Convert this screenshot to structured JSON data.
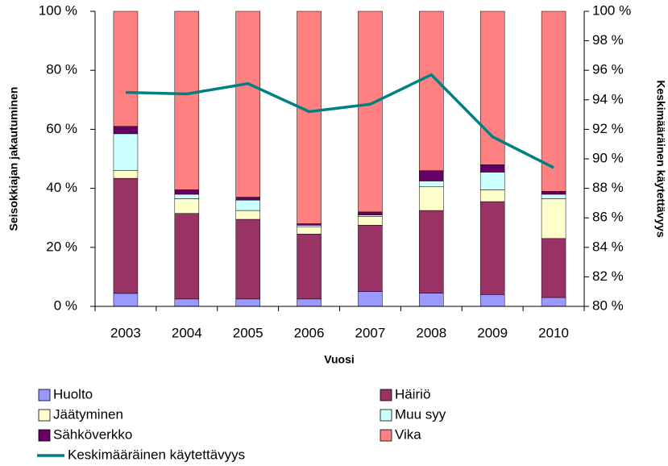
{
  "chart_data": {
    "type": "stacked-bar-line",
    "xlabel": "Vuosi",
    "ylabel": "Seisokkiajan jakautuminen",
    "y2label": "Keskimääräinen käytettävyys",
    "categories": [
      "2003",
      "2004",
      "2005",
      "2006",
      "2007",
      "2008",
      "2009",
      "2010"
    ],
    "ylim": [
      0,
      100
    ],
    "yticks": [
      {
        "value": 0,
        "label": "0 %"
      },
      {
        "value": 20,
        "label": "20 %"
      },
      {
        "value": 40,
        "label": "40 %"
      },
      {
        "value": 60,
        "label": "60 %"
      },
      {
        "value": 80,
        "label": "80 %"
      },
      {
        "value": 100,
        "label": "100 %"
      }
    ],
    "y2lim": [
      80,
      100
    ],
    "y2ticks": [
      {
        "value": 80,
        "label": "80 %"
      },
      {
        "value": 82,
        "label": "82 %"
      },
      {
        "value": 84,
        "label": "84 %"
      },
      {
        "value": 86,
        "label": "86 %"
      },
      {
        "value": 88,
        "label": "88 %"
      },
      {
        "value": 90,
        "label": "90 %"
      },
      {
        "value": 92,
        "label": "92 %"
      },
      {
        "value": 94,
        "label": "94 %"
      },
      {
        "value": 96,
        "label": "96 %"
      },
      {
        "value": 98,
        "label": "98 %"
      },
      {
        "value": 100,
        "label": "100 %"
      }
    ],
    "series": [
      {
        "name": "Huolto",
        "color": "#9999ff",
        "values": [
          4.4,
          2.5,
          2.5,
          2.5,
          5,
          4.5,
          4,
          3
        ]
      },
      {
        "name": "Häiriö",
        "color": "#993366",
        "values": [
          39,
          29,
          27,
          22,
          22.5,
          28,
          31.5,
          20
        ]
      },
      {
        "name": "Jäätyminen",
        "color": "#ffffcc",
        "values": [
          2.6,
          5,
          3,
          2.5,
          3,
          8,
          4,
          13.5
        ]
      },
      {
        "name": "Muu syy",
        "color": "#ccffff",
        "values": [
          12.5,
          1.5,
          3.5,
          0.5,
          0.5,
          2,
          6,
          1.5
        ]
      },
      {
        "name": "Sähköverkko",
        "color": "#660066",
        "values": [
          2.5,
          1.5,
          1,
          0.5,
          1,
          3.5,
          2.5,
          1
        ]
      },
      {
        "name": "Vika",
        "color": "#ff8080",
        "values": [
          39,
          60.5,
          63,
          72,
          68,
          54,
          52,
          61
        ]
      },
      {
        "name": "Keskimääräinen käytettävyys",
        "color": "#008080",
        "axis": "y2",
        "type": "line",
        "values": [
          94.5,
          94.4,
          95.1,
          93.2,
          93.7,
          95.7,
          91.5,
          89.4
        ]
      }
    ]
  }
}
